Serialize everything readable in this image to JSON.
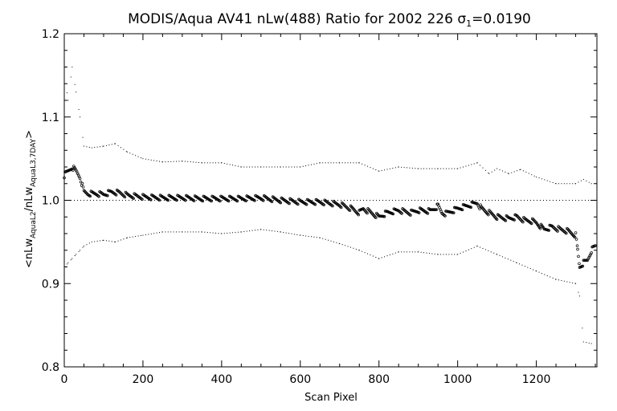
{
  "chart_data": {
    "type": "scatter",
    "title_prefix": "MODIS/Aqua AV41 nLw(488) Ratio for 2002 226 ",
    "title_sigma": "σ",
    "title_sigma_sub": "1",
    "title_suffix": "=0.0190",
    "xlabel": "Scan Pixel",
    "ylabel_parts": {
      "open": "<nLw",
      "sub1": "AquaL2",
      "mid": "/nLw",
      "sub2": "AquaL3,7DAY",
      "close": ">"
    },
    "xlim": [
      0,
      1354
    ],
    "ylim": [
      0.8,
      1.2
    ],
    "xticks": [
      0,
      200,
      400,
      600,
      800,
      1000,
      1200
    ],
    "yticks": [
      0.8,
      0.9,
      1.0,
      1.1,
      1.2
    ],
    "xtick_labels": [
      "0",
      "200",
      "400",
      "600",
      "800",
      "1000",
      "1200"
    ],
    "ytick_labels": [
      "0.8",
      "0.9",
      "1.0",
      "1.1",
      "1.2"
    ],
    "reference_line": 1.0,
    "series": [
      {
        "role": "mean",
        "x": [
          0,
          10,
          20,
          30,
          40,
          50,
          60,
          80,
          100,
          120,
          140,
          160,
          180,
          200,
          250,
          300,
          350,
          400,
          450,
          500,
          550,
          600,
          650,
          700,
          730,
          750,
          760,
          780,
          800,
          820,
          850,
          880,
          900,
          930,
          950,
          960,
          970,
          1000,
          1030,
          1050,
          1060,
          1080,
          1100,
          1130,
          1150,
          1170,
          1190,
          1200,
          1220,
          1240,
          1260,
          1280,
          1300,
          1305,
          1310,
          1320,
          1330,
          1340,
          1350
        ],
        "y": [
          1.03,
          1.035,
          1.04,
          1.035,
          1.028,
          1.01,
          1.008,
          1.008,
          1.007,
          1.01,
          1.009,
          1.006,
          1.005,
          1.004,
          1.003,
          1.003,
          1.002,
          1.002,
          1.002,
          1.003,
          1.0,
          0.998,
          0.998,
          0.995,
          0.99,
          0.985,
          0.99,
          0.985,
          0.98,
          0.985,
          0.988,
          0.985,
          0.988,
          0.987,
          0.993,
          0.985,
          0.984,
          0.99,
          0.994,
          0.997,
          0.99,
          0.985,
          0.98,
          0.978,
          0.98,
          0.976,
          0.975,
          0.973,
          0.965,
          0.968,
          0.965,
          0.963,
          0.958,
          0.94,
          0.92,
          0.925,
          0.928,
          0.94,
          0.945
        ]
      },
      {
        "role": "upper",
        "x": [
          0,
          10,
          20,
          30,
          40,
          50,
          70,
          100,
          130,
          160,
          200,
          250,
          300,
          350,
          400,
          450,
          500,
          550,
          600,
          650,
          700,
          750,
          800,
          850,
          900,
          950,
          1000,
          1050,
          1080,
          1100,
          1130,
          1160,
          1200,
          1250,
          1300,
          1320,
          1340
        ],
        "y": [
          1.15,
          1.12,
          1.16,
          1.13,
          1.1,
          1.065,
          1.063,
          1.065,
          1.068,
          1.058,
          1.05,
          1.046,
          1.047,
          1.045,
          1.045,
          1.04,
          1.04,
          1.04,
          1.04,
          1.045,
          1.045,
          1.045,
          1.035,
          1.04,
          1.038,
          1.038,
          1.038,
          1.045,
          1.032,
          1.038,
          1.032,
          1.037,
          1.028,
          1.02,
          1.02,
          1.025,
          1.02
        ]
      },
      {
        "role": "lower",
        "x": [
          0,
          10,
          20,
          30,
          40,
          50,
          70,
          100,
          130,
          160,
          200,
          250,
          300,
          350,
          400,
          450,
          500,
          550,
          600,
          650,
          700,
          750,
          800,
          850,
          900,
          950,
          1000,
          1050,
          1100,
          1150,
          1200,
          1250,
          1300,
          1310,
          1320,
          1340
        ],
        "y": [
          0.92,
          0.925,
          0.93,
          0.935,
          0.94,
          0.945,
          0.95,
          0.952,
          0.95,
          0.955,
          0.958,
          0.962,
          0.962,
          0.962,
          0.96,
          0.962,
          0.965,
          0.962,
          0.958,
          0.955,
          0.948,
          0.94,
          0.93,
          0.938,
          0.938,
          0.935,
          0.935,
          0.945,
          0.935,
          0.925,
          0.915,
          0.905,
          0.9,
          0.885,
          0.83,
          0.828
        ]
      }
    ]
  }
}
